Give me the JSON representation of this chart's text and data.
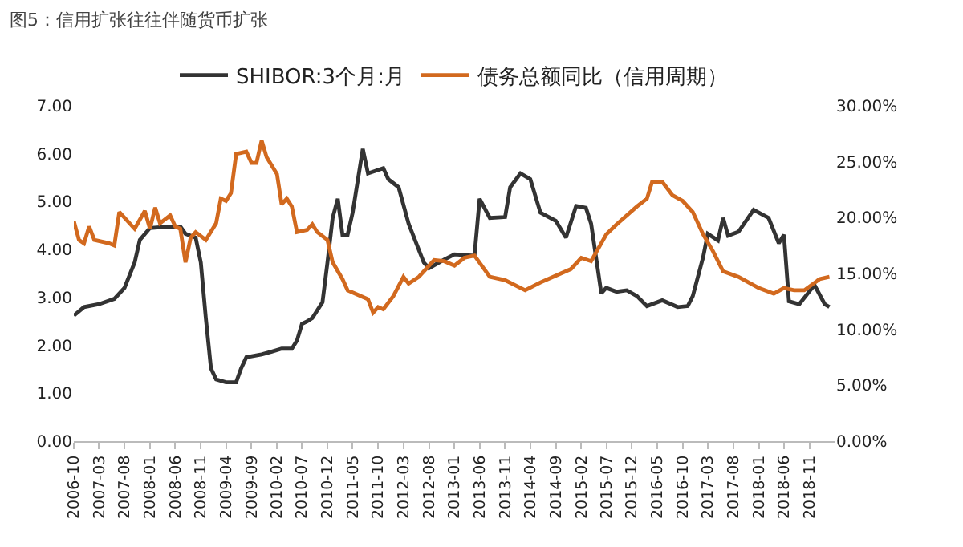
{
  "chart_data": {
    "type": "line",
    "title": "图5：信用扩张往往伴随货币扩张",
    "series": [
      {
        "name": "SHIBOR:3个月:月",
        "color": "#333333",
        "x": [
          "2006-10",
          "2006-12",
          "2007-03",
          "2007-06",
          "2007-08",
          "2007-10",
          "2007-11",
          "2008-01",
          "2008-05",
          "2008-07",
          "2008-08",
          "2008-10",
          "2008-11",
          "2008-12",
          "2009-01",
          "2009-02",
          "2009-04",
          "2009-06",
          "2009-07",
          "2009-08",
          "2009-11",
          "2010-01",
          "2010-03",
          "2010-05",
          "2010-06",
          "2010-07",
          "2010-08",
          "2010-09",
          "2010-11",
          "2010-12",
          "2011-01",
          "2011-02",
          "2011-03",
          "2011-04",
          "2011-05",
          "2011-07",
          "2011-08",
          "2011-11",
          "2011-12",
          "2012-02",
          "2012-04",
          "2012-07",
          "2012-08",
          "2012-11",
          "2013-01",
          "2013-05",
          "2013-06",
          "2013-08",
          "2013-11",
          "2013-12",
          "2014-02",
          "2014-04",
          "2014-06",
          "2014-09",
          "2014-11",
          "2015-01",
          "2015-03",
          "2015-04",
          "2015-06",
          "2015-07",
          "2015-09",
          "2015-11",
          "2016-01",
          "2016-03",
          "2016-06",
          "2016-09",
          "2016-11",
          "2016-12",
          "2017-02",
          "2017-03",
          "2017-05",
          "2017-06",
          "2017-07",
          "2017-09",
          "2017-12",
          "2018-03",
          "2018-05",
          "2018-06",
          "2018-07",
          "2018-09",
          "2018-12",
          "2019-02",
          "2019-03"
        ],
        "values": [
          2.62,
          2.8,
          2.86,
          2.97,
          3.2,
          3.73,
          4.2,
          4.45,
          4.48,
          4.48,
          4.33,
          4.25,
          3.73,
          2.57,
          1.52,
          1.29,
          1.23,
          1.23,
          1.52,
          1.75,
          1.81,
          1.87,
          1.93,
          1.93,
          2.1,
          2.45,
          2.5,
          2.57,
          2.9,
          3.73,
          4.66,
          5.06,
          4.31,
          4.31,
          4.77,
          6.1,
          5.59,
          5.7,
          5.47,
          5.3,
          4.54,
          3.73,
          3.61,
          3.79,
          3.9,
          3.87,
          5.06,
          4.66,
          4.68,
          5.3,
          5.59,
          5.47,
          4.77,
          4.6,
          4.25,
          4.91,
          4.87,
          4.54,
          3.09,
          3.2,
          3.12,
          3.15,
          3.03,
          2.82,
          2.94,
          2.8,
          2.82,
          3.03,
          3.84,
          4.33,
          4.19,
          4.66,
          4.29,
          4.37,
          4.83,
          4.66,
          4.13,
          4.31,
          2.92,
          2.86,
          3.26,
          2.86,
          2.8
        ]
      },
      {
        "name": "债务总额同比（信用周期）",
        "color": "#d2691e",
        "axis": "y2",
        "x": [
          "2006-10",
          "2006-11",
          "2006-12",
          "2007-01",
          "2007-02",
          "2007-05",
          "2007-06",
          "2007-07",
          "2007-10",
          "2007-12",
          "2008-01",
          "2008-02",
          "2008-03",
          "2008-05",
          "2008-06",
          "2008-07",
          "2008-08",
          "2008-09",
          "2008-10",
          "2008-12",
          "2009-02",
          "2009-03",
          "2009-04",
          "2009-05",
          "2009-06",
          "2009-08",
          "2009-09",
          "2009-10",
          "2009-11",
          "2009-12",
          "2010-02",
          "2010-03",
          "2010-04",
          "2010-05",
          "2010-06",
          "2010-08",
          "2010-09",
          "2010-10",
          "2010-12",
          "2011-01",
          "2011-03",
          "2011-04",
          "2011-06",
          "2011-08",
          "2011-09",
          "2011-10",
          "2011-11",
          "2012-01",
          "2012-03",
          "2012-04",
          "2012-06",
          "2012-09",
          "2012-11",
          "2013-01",
          "2013-03",
          "2013-05",
          "2013-08",
          "2013-11",
          "2014-03",
          "2014-06",
          "2014-10",
          "2014-12",
          "2015-02",
          "2015-04",
          "2015-07",
          "2015-09",
          "2016-01",
          "2016-03",
          "2016-04",
          "2016-06",
          "2016-08",
          "2016-10",
          "2016-12",
          "2017-02",
          "2017-04",
          "2017-06",
          "2017-09",
          "2017-11",
          "2018-01",
          "2018-04",
          "2018-06",
          "2018-08",
          "2018-10",
          "2019-01",
          "2019-03"
        ],
        "values": [
          19.7,
          18.0,
          17.7,
          19.2,
          18.0,
          17.7,
          17.5,
          20.5,
          19.0,
          20.6,
          19.0,
          20.9,
          19.5,
          20.2,
          19.2,
          19.0,
          16.0,
          18.2,
          18.7,
          18.0,
          19.5,
          21.7,
          21.5,
          22.2,
          25.7,
          25.9,
          24.9,
          24.9,
          26.9,
          25.4,
          23.9,
          21.2,
          21.7,
          21.0,
          18.7,
          18.9,
          19.4,
          18.7,
          18.0,
          16.0,
          14.5,
          13.5,
          13.1,
          12.7,
          11.5,
          12.0,
          11.8,
          13.0,
          14.7,
          14.1,
          14.7,
          16.2,
          16.1,
          15.7,
          16.4,
          16.6,
          14.7,
          14.4,
          13.5,
          14.2,
          15.0,
          15.4,
          16.4,
          16.1,
          18.5,
          19.4,
          21.0,
          21.7,
          23.2,
          23.2,
          22.0,
          21.5,
          20.5,
          18.5,
          17.0,
          15.2,
          14.7,
          14.2,
          13.7,
          13.2,
          13.7,
          13.5,
          13.5,
          14.5,
          14.7
        ]
      }
    ],
    "xlim": [
      "2006-10",
      "2019-04"
    ],
    "xticks": [
      "2006-10",
      "2007-03",
      "2007-08",
      "2008-01",
      "2008-06",
      "2008-11",
      "2009-04",
      "2009-09",
      "2010-02",
      "2010-07",
      "2010-12",
      "2011-05",
      "2011-10",
      "2012-03",
      "2012-08",
      "2013-01",
      "2013-06",
      "2013-11",
      "2014-04",
      "2014-09",
      "2015-02",
      "2015-07",
      "2015-12",
      "2016-05",
      "2016-10",
      "2017-03",
      "2017-08",
      "2018-01",
      "2018-06",
      "2018-11"
    ],
    "ylim": [
      0,
      7
    ],
    "yticks": [
      {
        "value": 0,
        "label": "0.00"
      },
      {
        "value": 1,
        "label": "1.00"
      },
      {
        "value": 2,
        "label": "2.00"
      },
      {
        "value": 3,
        "label": "3.00"
      },
      {
        "value": 4,
        "label": "4.00"
      },
      {
        "value": 5,
        "label": "5.00"
      },
      {
        "value": 6,
        "label": "6.00"
      },
      {
        "value": 7,
        "label": "7.00"
      }
    ],
    "y2lim": [
      0,
      30
    ],
    "y2ticks": [
      {
        "value": 0,
        "label": "0.00%"
      },
      {
        "value": 5,
        "label": "5.00%"
      },
      {
        "value": 10,
        "label": "10.00%"
      },
      {
        "value": 15,
        "label": "15.00%"
      },
      {
        "value": 20,
        "label": "20.00%"
      },
      {
        "value": 25,
        "label": "25.00%"
      },
      {
        "value": 30,
        "label": "30.00%"
      }
    ],
    "legend": "top",
    "marker": "none",
    "line_style": "solid"
  }
}
